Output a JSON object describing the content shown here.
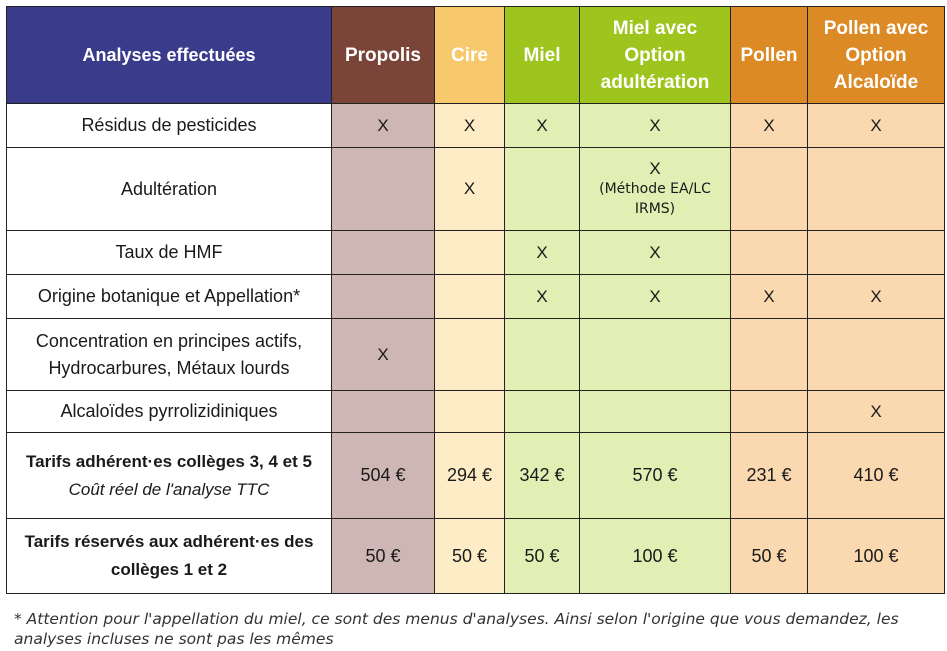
{
  "colors": {
    "header_label_bg": "#3b3b8c",
    "propolis": {
      "header": "#7b4439",
      "cell": "#cdb6b3"
    },
    "cire": {
      "header": "#f7c96c",
      "cell": "#fdecc6"
    },
    "miel": {
      "header": "#9dc51e",
      "cell": "#e1eeb4"
    },
    "miel_option": {
      "header": "#9dc51e",
      "cell": "#e1eeb4"
    },
    "pollen": {
      "header": "#dc8a25",
      "cell": "#fad8b0"
    },
    "pollen_option": {
      "header": "#dc8a25",
      "cell": "#fad8b0"
    }
  },
  "table": {
    "header_label": "Analyses effectuées",
    "columns": [
      "Propolis",
      "Cire",
      "Miel",
      "Miel avec Option adultération",
      "Pollen",
      "Pollen avec Option Alcaloïde"
    ],
    "rows": [
      {
        "label": "Résidus de pesticides",
        "cells": [
          "X",
          "X",
          "X",
          "X",
          "X",
          "X"
        ]
      },
      {
        "label": "Adultération",
        "cells": [
          "",
          "X",
          "",
          "X",
          "",
          ""
        ],
        "note": "(Méthode EA/LC IRMS)"
      },
      {
        "label": "Taux de HMF",
        "cells": [
          "",
          "",
          "X",
          "X",
          "",
          ""
        ]
      },
      {
        "label": "Origine botanique et Appellation*",
        "cells": [
          "",
          "",
          "X",
          "X",
          "X",
          "X"
        ]
      },
      {
        "label": "Concentration en principes actifs, Hydrocarbures, Métaux lourds",
        "cells": [
          "X",
          "",
          "",
          "",
          "",
          ""
        ]
      },
      {
        "label": "Alcaloïdes pyrrolizidiniques",
        "cells": [
          "",
          "",
          "",
          "",
          "",
          "X"
        ]
      }
    ]
  },
  "prices": [
    {
      "label": "Tarifs adhérent·es collèges 3, 4 et 5",
      "sublabel": "Coût réel de l'analyse TTC",
      "values": [
        "504 €",
        "294 €",
        "342 €",
        "570 €",
        "231 €",
        "410 €"
      ]
    },
    {
      "label": "Tarifs réservés aux adhérent·es des collèges 1 et 2",
      "sublabel": "",
      "values": [
        "50 €",
        "50 €",
        "50 €",
        "100 €",
        "50 €",
        "100 €"
      ]
    }
  ],
  "footnote": "* Attention pour l'appellation du miel, ce sont des menus d'analyses. Ainsi selon l'origine que vous demandez, les analyses incluses ne sont pas les mêmes"
}
